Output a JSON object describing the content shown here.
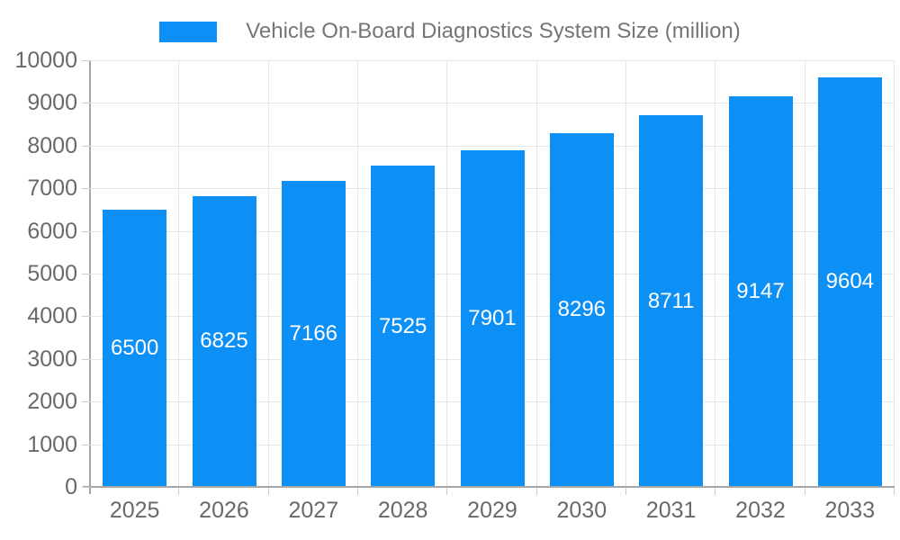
{
  "chart_data": {
    "type": "bar",
    "title": "Vehicle On-Board Diagnostics System Size (million)",
    "categories": [
      "2025",
      "2026",
      "2027",
      "2028",
      "2029",
      "2030",
      "2031",
      "2032",
      "2033"
    ],
    "values": [
      6500,
      6825,
      7166,
      7525,
      7901,
      8296,
      8711,
      9147,
      9604
    ],
    "value_labels": [
      "6500",
      "6825",
      "7166",
      "7525",
      "7901",
      "8296",
      "8711",
      "9147",
      "9604"
    ],
    "xlabel": "",
    "ylabel": "",
    "ylim": [
      0,
      10000
    ],
    "y_tick_step": 1000,
    "y_tick_labels": [
      "0",
      "1000",
      "2000",
      "3000",
      "4000",
      "5000",
      "6000",
      "7000",
      "8000",
      "9000",
      "10000"
    ],
    "grid": true,
    "legend_position": "top",
    "value_label_position": "inside-center"
  },
  "colors": {
    "bar": "#0d90f6",
    "title_text": "#757575",
    "axis_text": "#696969",
    "gridline": "#e6e6e6",
    "tick": "#cccccc",
    "axis_line": "#a6a6a6",
    "value_label_text": "#ffffff",
    "background": "#ffffff"
  }
}
